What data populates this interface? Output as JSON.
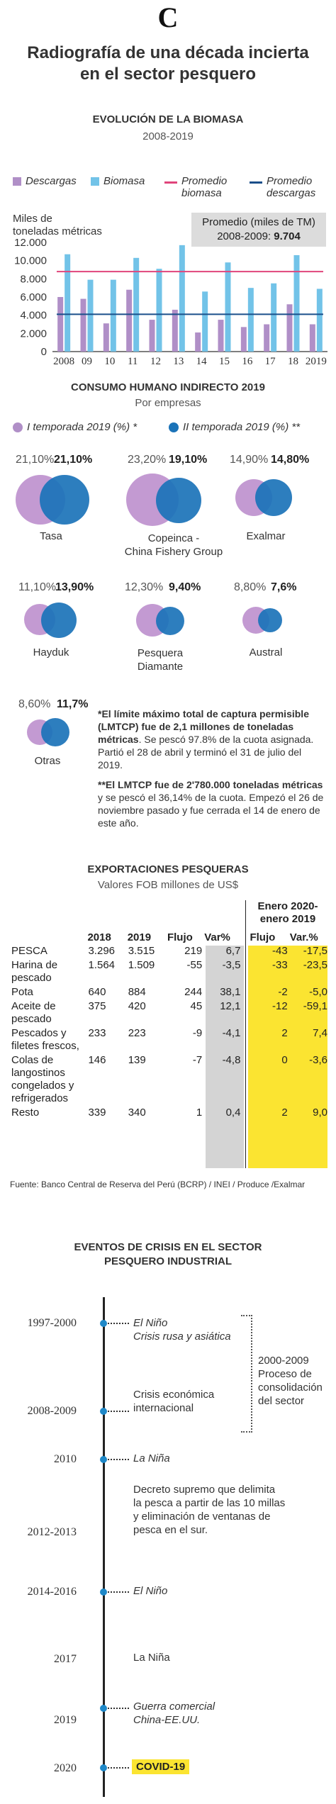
{
  "header": {
    "logo_letter": "C",
    "title_line1": "Radiografía de una década incierta",
    "title_line2": "en el sector pesquero"
  },
  "biomasa": {
    "title": "EVOLUCIÓN DE LA BIOMASA",
    "subtitle": "2008-2019",
    "legend": {
      "descargas": "Descargas",
      "biomasa": "Biomasa",
      "prom_biomasa_1": "Promedio",
      "prom_biomasa_2": "biomasa",
      "prom_descargas_1": "Promedio",
      "prom_descargas_2": "descargas"
    },
    "ylabel_1": "Miles de",
    "ylabel_2": "toneladas métricas",
    "box_line1": "Promedio (miles de TM)",
    "box_line2_label": "2008-2009:",
    "box_line2_value": "9.704"
  },
  "chart_data": {
    "type": "bar",
    "categories": [
      "2008",
      "09",
      "10",
      "11",
      "12",
      "13",
      "14",
      "15",
      "16",
      "17",
      "18",
      "2019"
    ],
    "series": [
      {
        "name": "Descargas",
        "values": [
          6000,
          5800,
          3100,
          6800,
          3500,
          4600,
          2100,
          3500,
          2700,
          3000,
          5200,
          3000
        ]
      },
      {
        "name": "Biomasa",
        "values": [
          10700,
          7900,
          7900,
          10300,
          9100,
          11700,
          6600,
          9800,
          7000,
          7500,
          10600,
          6900
        ]
      }
    ],
    "reference_lines": [
      {
        "name": "Promedio biomasa",
        "value": 8800
      },
      {
        "name": "Promedio descargas",
        "value": 4100
      }
    ],
    "yticks": [
      "12.000",
      "10.000",
      "8.000",
      "6.000",
      "4.000",
      "2.000",
      "0"
    ],
    "ylim": [
      0,
      12000
    ],
    "colors": {
      "descargas": "#b08fc7",
      "biomasa": "#72c3e8",
      "prom_biomasa": "#e0457b",
      "prom_descargas": "#1a4f8a"
    }
  },
  "consumo": {
    "title": "CONSUMO HUMANO INDIRECTO 2019",
    "subtitle": "Por empresas",
    "legend_1": "I temporada 2019 (%) *",
    "legend_2": "II temporada 2019 (%) **",
    "companies": [
      {
        "name": "Tasa",
        "p1": "21,10%",
        "p2": "21,10%"
      },
      {
        "name": "Copeinca -",
        "name2": "China Fishery Group",
        "p1": "23,20%",
        "p2": "19,10%"
      },
      {
        "name": "Exalmar",
        "p1": "14,90%",
        "p2": "14,80%"
      },
      {
        "name": "Hayduk",
        "p1": "11,10%",
        "p2": "13,90%"
      },
      {
        "name": "Pesquera",
        "name2": "Diamante",
        "p1": "12,30%",
        "p2": "9,40%"
      },
      {
        "name": "Austral",
        "p1": "8,80%",
        "p2": "7,6%"
      },
      {
        "name": "Otras",
        "p1": "8,60%",
        "p2": "11,7%"
      }
    ],
    "note1_bold": "*El límite máximo total de captura permisible (LMTCP) fue de 2,1 millones de toneladas métricas",
    "note1_rest": ". Se pescó 97.8% de la cuota asignada. Partió el 28 de abril y terminó el 31 de julio del 2019.",
    "note2_bold": "**El LMTCP fue de 2'780.000 toneladas métricas",
    "note2_rest": " y se pescó el 36,14% de la cuota. Empezó el 26 de noviembre pasado y fue cerrada el 14 de enero de este año."
  },
  "exportaciones": {
    "title": "EXPORTACIONES PESQUERAS",
    "subtitle": "Valores FOB millones de US$",
    "period_1": "Enero 2020-",
    "period_2": "enero 2019",
    "headers": [
      "2018",
      "2019",
      "Flujo",
      "Var%",
      "Flujo",
      "Var.%"
    ],
    "rows": [
      {
        "label": "PESCA",
        "v2018": "3.296",
        "v2019": "3.515",
        "flujo": "219",
        "var": "6,7",
        "flujo2": "-43",
        "var2": "-17,5"
      },
      {
        "label": "Harina de pescado",
        "v2018": "1.564",
        "v2019": "1.509",
        "flujo": "-55",
        "var": "-3,5",
        "flujo2": "-33",
        "var2": "-23,5"
      },
      {
        "label": "Pota",
        "v2018": "640",
        "v2019": "884",
        "flujo": "244",
        "var": "38,1",
        "flujo2": "-2",
        "var2": "-5,0"
      },
      {
        "label": "Aceite de pescado",
        "v2018": "375",
        "v2019": "420",
        "flujo": "45",
        "var": "12,1",
        "flujo2": "-12",
        "var2": "-59,1"
      },
      {
        "label": "Pescados y filetes frescos,",
        "v2018": "233",
        "v2019": "223",
        "flujo": "-9",
        "var": "-4,1",
        "flujo2": "2",
        "var2": "7,4"
      },
      {
        "label": "Colas de langostinos congelados y refrigerados",
        "v2018": "146",
        "v2019": "139",
        "flujo": "-7",
        "var": "-4,8",
        "flujo2": "0",
        "var2": "-3,6"
      },
      {
        "label": "Resto",
        "v2018": "339",
        "v2019": "340",
        "flujo": "1",
        "var": "0,4",
        "flujo2": "2",
        "var2": "9,0"
      }
    ],
    "source": "Fuente: Banco Central de Reserva del Perú (BCRP) / INEI / Produce /Exalmar"
  },
  "eventos": {
    "title_1": "EVENTOS DE CRISIS EN EL SECTOR",
    "title_2": "PESQUERO INDUSTRIAL",
    "bracket_1": "2000-2009",
    "bracket_2": "Proceso de",
    "bracket_3": "consolidación",
    "bracket_4": "del sector",
    "items": [
      {
        "year": "1997-2000",
        "text1": "El Niño",
        "text2": "Crisis rusa y asiática"
      },
      {
        "year": "2008-2009",
        "text1": "Crisis económica",
        "text2": "internacional"
      },
      {
        "year": "2010",
        "text1": "La Niña"
      },
      {
        "year": "2012-2013",
        "text1": "Decreto supremo que delimita",
        "text2": "la pesca a partir de las 10 millas",
        "text3": "y eliminación de ventanas de",
        "text4": "pesca en el sur."
      },
      {
        "year": "2014-2016",
        "text1": "El Niño"
      },
      {
        "year": "2017",
        "text1": "La Niña"
      },
      {
        "year": "2019",
        "text1": "Guerra comercial",
        "text2": "China-EE.UU."
      },
      {
        "year": "2020",
        "text1": "COVID-19"
      }
    ]
  }
}
